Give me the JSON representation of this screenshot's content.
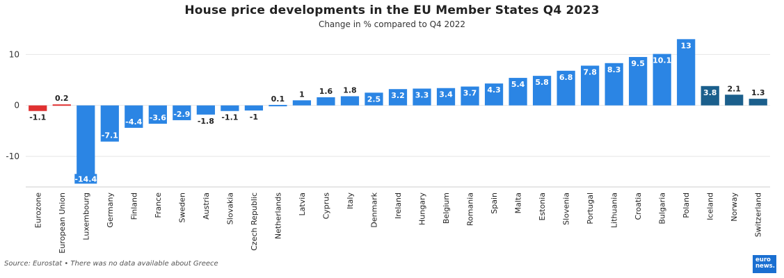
{
  "chart_data": {
    "type": "bar",
    "title": "House price developments in the EU Member States Q4 2023",
    "subtitle": "Change in % compared to Q4 2022",
    "xlabel": "",
    "ylabel": "",
    "ylim": [
      -16,
      14
    ],
    "yticks": [
      -10,
      0,
      10
    ],
    "grid": true,
    "categories": [
      "Eurozone",
      "European Union",
      "Luxembourg",
      "Germany",
      "Finland",
      "France",
      "Sweden",
      "Austria",
      "Slovakia",
      "Czech Republic",
      "Netherlands",
      "Latvia",
      "Cyprus",
      "Italy",
      "Denmark",
      "Ireland",
      "Hungary",
      "Belgium",
      "Romania",
      "Spain",
      "Malta",
      "Estonia",
      "Slovenia",
      "Portugal",
      "Lithuania",
      "Croatia",
      "Bulgaria",
      "Poland",
      "Iceland",
      "Norway",
      "Switzerland"
    ],
    "values": [
      -1.1,
      0.2,
      -14.4,
      -7.1,
      -4.4,
      -3.6,
      -2.9,
      -1.8,
      -1.1,
      -1,
      0.1,
      1,
      1.6,
      1.8,
      2.5,
      3.2,
      3.3,
      3.4,
      3.7,
      4.3,
      5.4,
      5.8,
      6.8,
      7.8,
      8.3,
      9.5,
      10.1,
      13,
      3.8,
      2.1,
      1.3
    ],
    "groups": [
      "aggregate",
      "aggregate",
      "eu",
      "eu",
      "eu",
      "eu",
      "eu",
      "eu",
      "eu",
      "eu",
      "eu",
      "eu",
      "eu",
      "eu",
      "eu",
      "eu",
      "eu",
      "eu",
      "eu",
      "eu",
      "eu",
      "eu",
      "eu",
      "eu",
      "eu",
      "eu",
      "eu",
      "eu",
      "non-eu",
      "non-eu",
      "non-eu"
    ],
    "colors": {
      "aggregate": "#e03131",
      "eu": "#2b85e4",
      "non-eu": "#1b5f8c",
      "label_dark": "#222222",
      "label_light": "#ffffff",
      "grid": "#e6e6e6",
      "zero_line": "#999999"
    }
  },
  "source_note": "Source: Eurostat • There was no data available about Greece",
  "logo": {
    "line1": "euro",
    "line2": "news."
  }
}
